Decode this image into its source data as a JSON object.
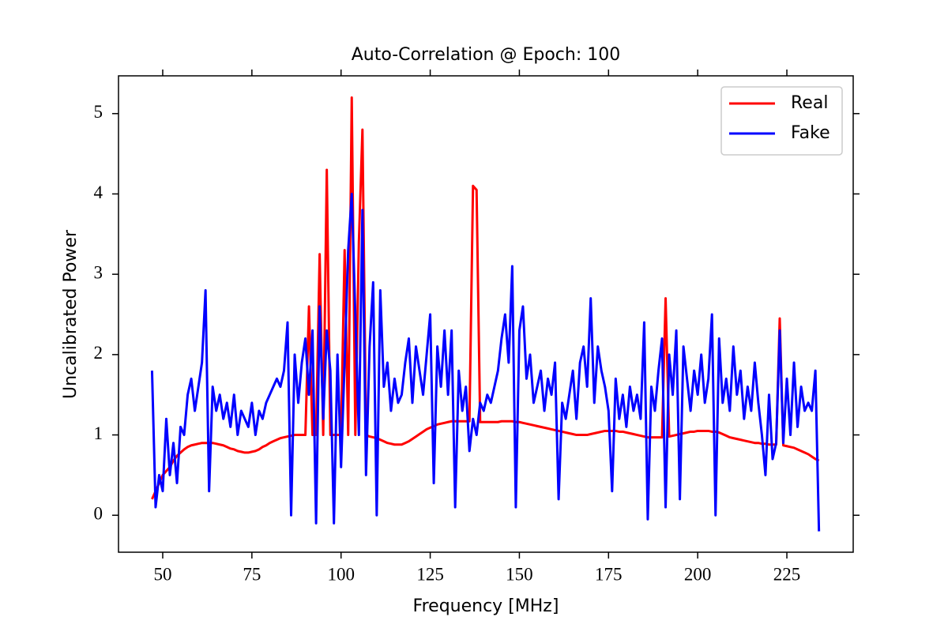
{
  "chart_data": {
    "type": "line",
    "title": "Auto-Correlation @ Epoch: 100",
    "x_label": "Frequency [MHz]",
    "y_label": "Uncalibrated Power",
    "x": [
      47,
      48,
      49,
      50,
      51,
      52,
      53,
      54,
      55,
      56,
      57,
      58,
      59,
      60,
      61,
      62,
      63,
      64,
      65,
      66,
      67,
      68,
      69,
      70,
      71,
      72,
      73,
      74,
      75,
      76,
      77,
      78,
      79,
      80,
      81,
      82,
      83,
      84,
      85,
      86,
      87,
      88,
      89,
      90,
      91,
      92,
      93,
      94,
      95,
      96,
      97,
      98,
      99,
      100,
      101,
      102,
      103,
      104,
      105,
      106,
      107,
      108,
      109,
      110,
      111,
      112,
      113,
      114,
      115,
      116,
      117,
      118,
      119,
      120,
      121,
      122,
      123,
      124,
      125,
      126,
      127,
      128,
      129,
      130,
      131,
      132,
      133,
      134,
      135,
      136,
      137,
      138,
      139,
      140,
      141,
      142,
      143,
      144,
      145,
      146,
      147,
      148,
      149,
      150,
      151,
      152,
      153,
      154,
      155,
      156,
      157,
      158,
      159,
      160,
      161,
      162,
      163,
      164,
      165,
      166,
      167,
      168,
      169,
      170,
      171,
      172,
      173,
      174,
      175,
      176,
      177,
      178,
      179,
      180,
      181,
      182,
      183,
      184,
      185,
      186,
      187,
      188,
      189,
      190,
      191,
      192,
      193,
      194,
      195,
      196,
      197,
      198,
      199,
      200,
      201,
      202,
      203,
      204,
      205,
      206,
      207,
      208,
      209,
      210,
      211,
      212,
      213,
      214,
      215,
      216,
      217,
      218,
      219,
      220,
      221,
      222,
      223,
      224,
      225,
      226,
      227,
      228,
      229,
      230,
      231,
      232,
      233,
      234
    ],
    "series": [
      {
        "name": "Real",
        "color": "#ff0000",
        "values": [
          0.2,
          0.3,
          0.4,
          0.5,
          0.55,
          0.6,
          0.68,
          0.74,
          0.78,
          0.82,
          0.85,
          0.87,
          0.88,
          0.89,
          0.9,
          0.9,
          0.9,
          0.9,
          0.89,
          0.88,
          0.87,
          0.85,
          0.83,
          0.82,
          0.8,
          0.79,
          0.78,
          0.78,
          0.79,
          0.8,
          0.82,
          0.85,
          0.87,
          0.9,
          0.92,
          0.94,
          0.96,
          0.97,
          0.98,
          0.99,
          1.0,
          1.0,
          1.0,
          1.0,
          2.6,
          1.0,
          1.0,
          3.25,
          1.0,
          4.3,
          1.0,
          1.0,
          1.0,
          1.0,
          3.3,
          1.0,
          5.2,
          1.0,
          3.4,
          4.8,
          1.0,
          0.98,
          0.97,
          0.96,
          0.94,
          0.92,
          0.9,
          0.89,
          0.88,
          0.88,
          0.88,
          0.9,
          0.92,
          0.95,
          0.98,
          1.01,
          1.04,
          1.07,
          1.09,
          1.11,
          1.13,
          1.14,
          1.15,
          1.16,
          1.17,
          1.17,
          1.17,
          1.17,
          1.17,
          1.17,
          4.1,
          4.05,
          1.16,
          1.16,
          1.16,
          1.16,
          1.16,
          1.16,
          1.17,
          1.17,
          1.17,
          1.17,
          1.16,
          1.16,
          1.15,
          1.14,
          1.13,
          1.12,
          1.11,
          1.1,
          1.09,
          1.08,
          1.07,
          1.06,
          1.05,
          1.04,
          1.03,
          1.02,
          1.01,
          1.0,
          1.0,
          1.0,
          1.0,
          1.01,
          1.02,
          1.03,
          1.04,
          1.05,
          1.05,
          1.05,
          1.05,
          1.04,
          1.04,
          1.03,
          1.02,
          1.01,
          1.0,
          0.99,
          0.98,
          0.97,
          0.97,
          0.97,
          0.97,
          0.97,
          2.7,
          0.98,
          0.99,
          1.0,
          1.01,
          1.02,
          1.03,
          1.04,
          1.04,
          1.05,
          1.05,
          1.05,
          1.05,
          1.04,
          1.04,
          1.03,
          1.01,
          0.99,
          0.97,
          0.96,
          0.95,
          0.94,
          0.93,
          0.92,
          0.91,
          0.9,
          0.9,
          0.89,
          0.89,
          0.88,
          0.88,
          0.88,
          2.45,
          0.87,
          0.86,
          0.85,
          0.84,
          0.82,
          0.8,
          0.78,
          0.76,
          0.73,
          0.7,
          0.68
        ]
      },
      {
        "name": "Fake",
        "color": "#0000ff",
        "values": [
          1.8,
          0.1,
          0.5,
          0.3,
          1.2,
          0.5,
          0.9,
          0.4,
          1.1,
          1.0,
          1.5,
          1.7,
          1.3,
          1.6,
          1.9,
          2.8,
          0.3,
          1.6,
          1.3,
          1.5,
          1.2,
          1.4,
          1.1,
          1.5,
          1.0,
          1.3,
          1.2,
          1.1,
          1.4,
          1.0,
          1.3,
          1.2,
          1.4,
          1.5,
          1.6,
          1.7,
          1.6,
          1.8,
          2.4,
          0.0,
          2.0,
          1.4,
          1.9,
          2.2,
          1.5,
          2.3,
          -0.1,
          2.6,
          1.2,
          2.3,
          1.8,
          -0.1,
          2.0,
          0.6,
          1.9,
          3.3,
          4.0,
          2.5,
          1.0,
          3.8,
          0.5,
          2.1,
          2.9,
          0.0,
          2.8,
          1.6,
          1.9,
          1.3,
          1.7,
          1.4,
          1.5,
          1.9,
          2.2,
          1.4,
          2.1,
          1.8,
          1.5,
          2.0,
          2.5,
          0.4,
          2.1,
          1.6,
          2.3,
          1.5,
          2.3,
          0.1,
          1.8,
          1.3,
          1.6,
          0.8,
          1.2,
          1.0,
          1.4,
          1.3,
          1.5,
          1.4,
          1.6,
          1.8,
          2.2,
          2.5,
          1.9,
          3.1,
          0.1,
          2.3,
          2.6,
          1.7,
          2.0,
          1.4,
          1.6,
          1.8,
          1.3,
          1.7,
          1.5,
          1.9,
          0.2,
          1.4,
          1.2,
          1.5,
          1.8,
          1.2,
          1.9,
          2.1,
          1.6,
          2.7,
          1.4,
          2.1,
          1.8,
          1.6,
          1.3,
          0.3,
          1.7,
          1.2,
          1.5,
          1.1,
          1.6,
          1.3,
          1.5,
          1.2,
          2.4,
          -0.05,
          1.6,
          1.3,
          1.8,
          2.2,
          0.1,
          2.0,
          1.5,
          2.3,
          0.2,
          2.1,
          1.7,
          1.3,
          1.8,
          1.5,
          2.0,
          1.4,
          1.7,
          2.5,
          0.0,
          2.2,
          1.4,
          1.7,
          1.3,
          2.1,
          1.5,
          1.8,
          1.2,
          1.6,
          1.3,
          1.9,
          1.4,
          1.0,
          0.5,
          1.5,
          0.7,
          0.9,
          2.3,
          0.9,
          1.7,
          1.0,
          1.9,
          1.1,
          1.6,
          1.3,
          1.4,
          1.3,
          1.8,
          -0.2
        ]
      }
    ],
    "xlim": [
      37.6,
      243.6
    ],
    "ylim": [
      -0.46,
      5.47
    ],
    "xticks": [
      50,
      75,
      100,
      125,
      150,
      175,
      200,
      225
    ],
    "yticks": [
      0,
      1,
      2,
      3,
      4,
      5
    ],
    "legend": "upper right"
  }
}
